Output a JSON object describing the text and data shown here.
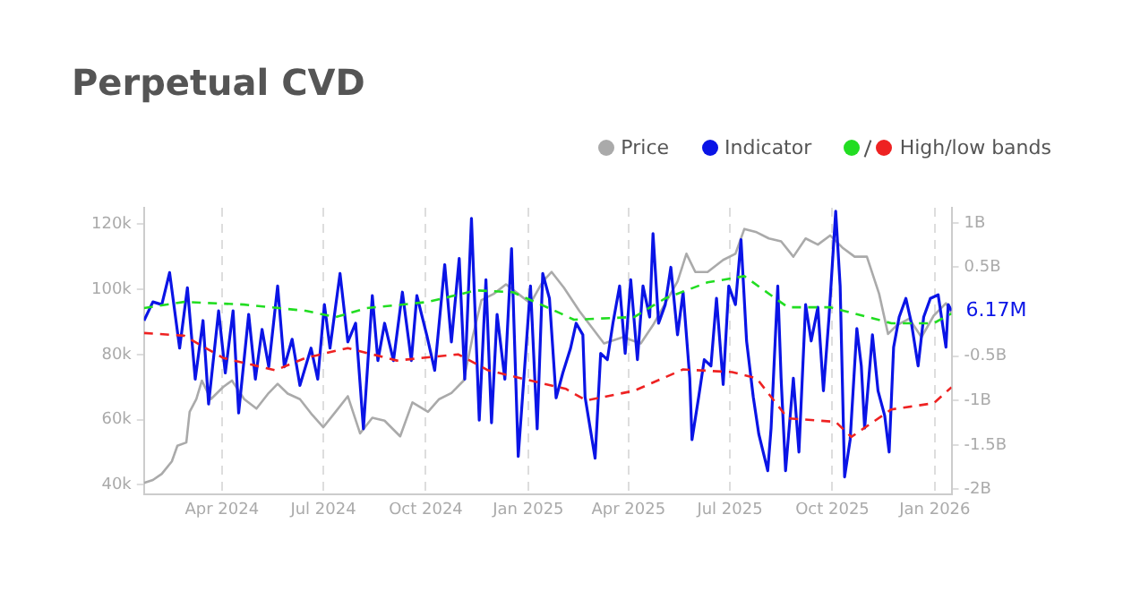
{
  "chart_data": {
    "type": "line",
    "title": "Perpetual CVD",
    "legend": "top right",
    "grid": "x",
    "xlim": [
      "2024-01-22",
      "2026-01-16"
    ],
    "xticks": [
      {
        "value": "2024-04-01",
        "label": "Apr 2024"
      },
      {
        "value": "2024-07-01",
        "label": "Jul 2024"
      },
      {
        "value": "2024-10-01",
        "label": "Oct 2024"
      },
      {
        "value": "2025-01-01",
        "label": "Jan 2025"
      },
      {
        "value": "2025-04-01",
        "label": "Apr 2025"
      },
      {
        "value": "2025-07-01",
        "label": "Jul 2025"
      },
      {
        "value": "2025-10-01",
        "label": "Oct 2025"
      },
      {
        "value": "2026-01-01",
        "label": "Jan 2026"
      }
    ],
    "ylim": [
      37000,
      125000
    ],
    "yticks": [
      {
        "value": 40000,
        "label": "40k"
      },
      {
        "value": 60000,
        "label": "60k"
      },
      {
        "value": 80000,
        "label": "80k"
      },
      {
        "value": 100000,
        "label": "100k"
      },
      {
        "value": 120000,
        "label": "120k"
      }
    ],
    "y2lim": [
      -2.06,
      1.17
    ],
    "y2ticks": [
      {
        "value": -2,
        "label": "-2B"
      },
      {
        "value": -1.5,
        "label": "-1.5B"
      },
      {
        "value": -1,
        "label": "-1B"
      },
      {
        "value": -0.5,
        "label": "-0.5B"
      },
      {
        "value": 0.5,
        "label": "0.5B"
      },
      {
        "value": 1,
        "label": "1B"
      }
    ],
    "annotations": [
      "6.17M"
    ],
    "series": [
      {
        "name": "Price",
        "color": "#aaaaaa",
        "x": [
          "2024-01-22",
          "2024-01-30",
          "2024-02-07",
          "2024-02-16",
          "2024-02-21",
          "2024-02-29",
          "2024-03-03",
          "2024-03-09",
          "2024-03-14",
          "2024-03-22",
          "2024-04-02",
          "2024-04-10",
          "2024-04-21",
          "2024-05-02",
          "2024-05-13",
          "2024-05-21",
          "2024-05-30",
          "2024-06-10",
          "2024-06-21",
          "2024-07-01",
          "2024-07-12",
          "2024-07-23",
          "2024-08-03",
          "2024-08-14",
          "2024-08-25",
          "2024-09-08",
          "2024-09-19",
          "2024-10-03",
          "2024-10-13",
          "2024-10-24",
          "2024-11-04",
          "2024-11-12",
          "2024-11-20",
          "2024-12-01",
          "2024-12-12",
          "2024-12-23",
          "2025-01-03",
          "2025-01-14",
          "2025-01-22",
          "2025-02-02",
          "2025-02-16",
          "2025-03-10",
          "2025-03-27",
          "2025-04-12",
          "2025-04-23",
          "2025-05-04",
          "2025-05-15",
          "2025-05-23",
          "2025-05-31",
          "2025-06-11",
          "2025-06-25",
          "2025-07-06",
          "2025-07-14",
          "2025-07-25",
          "2025-08-05",
          "2025-08-16",
          "2025-08-27",
          "2025-09-07",
          "2025-09-18",
          "2025-09-29",
          "2025-10-10",
          "2025-10-21",
          "2025-11-01",
          "2025-11-12",
          "2025-11-20",
          "2025-11-28",
          "2025-12-09",
          "2025-12-20",
          "2025-12-31",
          "2026-01-11",
          "2026-01-16"
        ],
        "values": [
          40600,
          41500,
          43400,
          47200,
          52000,
          53000,
          62400,
          66300,
          72000,
          66300,
          70000,
          72000,
          66300,
          63400,
          68200,
          71000,
          68000,
          66300,
          61500,
          57700,
          62400,
          67200,
          55800,
          60600,
          59700,
          54900,
          65300,
          62400,
          66300,
          68200,
          72000,
          85300,
          96700,
          98600,
          101500,
          98600,
          95700,
          102400,
          105300,
          100500,
          93300,
          83400,
          85300,
          83400,
          89000,
          95700,
          102400,
          110900,
          105300,
          105300,
          109000,
          110900,
          118500,
          117500,
          115600,
          114700,
          110000,
          115600,
          113700,
          116500,
          112800,
          110000,
          110000,
          98600,
          86300,
          89000,
          91000,
          85300,
          91900,
          95700,
          92800
        ]
      },
      {
        "name": "Indicator",
        "color": "#0a14e6",
        "axis": "y2",
        "x": [
          "2024-01-22",
          "2024-01-30",
          "2024-02-07",
          "2024-02-14",
          "2024-02-23",
          "2024-03-01",
          "2024-03-08",
          "2024-03-15",
          "2024-03-20",
          "2024-03-29",
          "2024-04-04",
          "2024-04-11",
          "2024-04-16",
          "2024-04-25",
          "2024-05-01",
          "2024-05-07",
          "2024-05-13",
          "2024-05-21",
          "2024-05-27",
          "2024-06-03",
          "2024-06-10",
          "2024-06-20",
          "2024-06-26",
          "2024-07-02",
          "2024-07-07",
          "2024-07-16",
          "2024-07-23",
          "2024-07-30",
          "2024-08-06",
          "2024-08-14",
          "2024-08-19",
          "2024-08-25",
          "2024-09-02",
          "2024-09-10",
          "2024-09-18",
          "2024-09-23",
          "2024-10-02",
          "2024-10-09",
          "2024-10-18",
          "2024-10-24",
          "2024-10-31",
          "2024-11-05",
          "2024-11-11",
          "2024-11-18",
          "2024-11-24",
          "2024-11-29",
          "2024-12-04",
          "2024-12-11",
          "2024-12-17",
          "2024-12-23",
          "2024-12-30",
          "2025-01-03",
          "2025-01-09",
          "2025-01-14",
          "2025-01-20",
          "2025-01-26",
          "2025-02-01",
          "2025-02-08",
          "2025-02-13",
          "2025-02-19",
          "2025-02-21",
          "2025-03-02",
          "2025-03-07",
          "2025-03-13",
          "2025-03-18",
          "2025-03-24",
          "2025-03-29",
          "2025-04-03",
          "2025-04-09",
          "2025-04-14",
          "2025-04-20",
          "2025-04-23",
          "2025-04-28",
          "2025-05-04",
          "2025-05-09",
          "2025-05-15",
          "2025-05-20",
          "2025-05-26",
          "2025-05-28",
          "2025-06-03",
          "2025-06-08",
          "2025-06-14",
          "2025-06-19",
          "2025-06-25",
          "2025-06-30",
          "2025-07-06",
          "2025-07-11",
          "2025-07-16",
          "2025-07-22",
          "2025-07-27",
          "2025-08-04",
          "2025-08-07",
          "2025-08-13",
          "2025-08-16",
          "2025-08-20",
          "2025-08-27",
          "2025-09-01",
          "2025-09-07",
          "2025-09-12",
          "2025-09-18",
          "2025-09-23",
          "2025-09-28",
          "2025-10-04",
          "2025-10-08",
          "2025-10-12",
          "2025-10-17",
          "2025-10-23",
          "2025-10-27",
          "2025-10-30",
          "2025-11-06",
          "2025-11-11",
          "2025-11-17",
          "2025-11-21",
          "2025-11-25",
          "2025-11-30",
          "2025-12-06",
          "2025-12-11",
          "2025-12-17",
          "2025-12-22",
          "2025-12-28",
          "2026-01-04",
          "2026-01-11",
          "2026-01-13",
          "2026-01-16"
        ],
        "values": [
          -0.1,
          0.11,
          0.08,
          0.44,
          -0.41,
          0.27,
          -0.76,
          -0.1,
          -1.04,
          0.01,
          -0.69,
          0.01,
          -1.14,
          -0.03,
          -0.76,
          -0.2,
          -0.62,
          0.29,
          -0.62,
          -0.31,
          -0.83,
          -0.41,
          -0.76,
          0.08,
          -0.41,
          0.43,
          -0.34,
          -0.13,
          -1.32,
          0.18,
          -0.55,
          -0.13,
          -0.55,
          0.22,
          -0.55,
          0.18,
          -0.27,
          -0.66,
          0.53,
          -0.34,
          0.6,
          -0.76,
          1.05,
          -1.22,
          0.36,
          -1.25,
          -0.03,
          -0.76,
          0.71,
          -1.63,
          -0.41,
          0.29,
          -1.32,
          0.43,
          0.15,
          -0.97,
          -0.69,
          -0.41,
          -0.13,
          -0.26,
          -0.96,
          -1.65,
          -0.47,
          -0.54,
          -0.13,
          0.29,
          -0.47,
          0.36,
          -0.54,
          0.29,
          -0.06,
          0.88,
          -0.13,
          0.08,
          0.5,
          -0.26,
          0.22,
          -0.75,
          -1.44,
          -0.96,
          -0.54,
          -0.61,
          0.15,
          -0.82,
          0.29,
          0.08,
          0.81,
          -0.33,
          -0.96,
          -1.38,
          -1.79,
          -1.31,
          0.29,
          -0.75,
          -1.79,
          -0.75,
          -1.58,
          0.08,
          -0.33,
          0.05,
          -0.89,
          -0.06,
          1.13,
          0.29,
          -1.86,
          -1.44,
          -0.19,
          -0.61,
          -1.31,
          -0.26,
          -0.89,
          -1.17,
          -1.58,
          -0.4,
          -0.06,
          0.15,
          -0.13,
          -0.61,
          -0.06,
          0.15,
          0.19,
          -0.4,
          0.08,
          0.01
        ]
      },
      {
        "color": "#22dd22",
        "axis": "y2",
        "line_style": "dashed",
        "x": [
          "2024-01-22",
          "2024-02-27",
          "2024-04-21",
          "2024-06-15",
          "2024-07-12",
          "2024-08-09",
          "2024-10-03",
          "2024-11-15",
          "2024-12-18",
          "2025-01-25",
          "2025-02-11",
          "2025-04-06",
          "2025-05-04",
          "2025-06-11",
          "2025-07-14",
          "2025-08-22",
          "2025-09-29",
          "2025-11-23",
          "2025-12-31",
          "2026-01-16"
        ],
        "values": [
          0.04,
          0.11,
          0.08,
          0.01,
          -0.06,
          0.04,
          0.11,
          0.24,
          0.22,
          0.01,
          -0.09,
          -0.06,
          0.15,
          0.33,
          0.4,
          0.05,
          0.05,
          -0.13,
          -0.13,
          -0.02
        ]
      },
      {
        "name": "High/low bands",
        "color": "#ee2222",
        "axis": "y2",
        "line_style": "dashed",
        "x": [
          "2024-01-22",
          "2024-02-27",
          "2024-04-02",
          "2024-05-19",
          "2024-06-15",
          "2024-07-23",
          "2024-09-05",
          "2024-10-30",
          "2024-11-26",
          "2024-12-29",
          "2025-02-04",
          "2025-02-22",
          "2025-04-06",
          "2025-05-20",
          "2025-07-03",
          "2025-07-25",
          "2025-08-22",
          "2025-10-04",
          "2025-10-18",
          "2025-11-23",
          "2025-12-31",
          "2026-01-16"
        ],
        "values": [
          -0.24,
          -0.27,
          -0.52,
          -0.66,
          -0.52,
          -0.41,
          -0.55,
          -0.48,
          -0.66,
          -0.76,
          -0.87,
          -1.0,
          -0.89,
          -0.65,
          -0.68,
          -0.75,
          -1.2,
          -1.24,
          -1.41,
          -1.1,
          -1.03,
          -0.85
        ]
      }
    ]
  }
}
